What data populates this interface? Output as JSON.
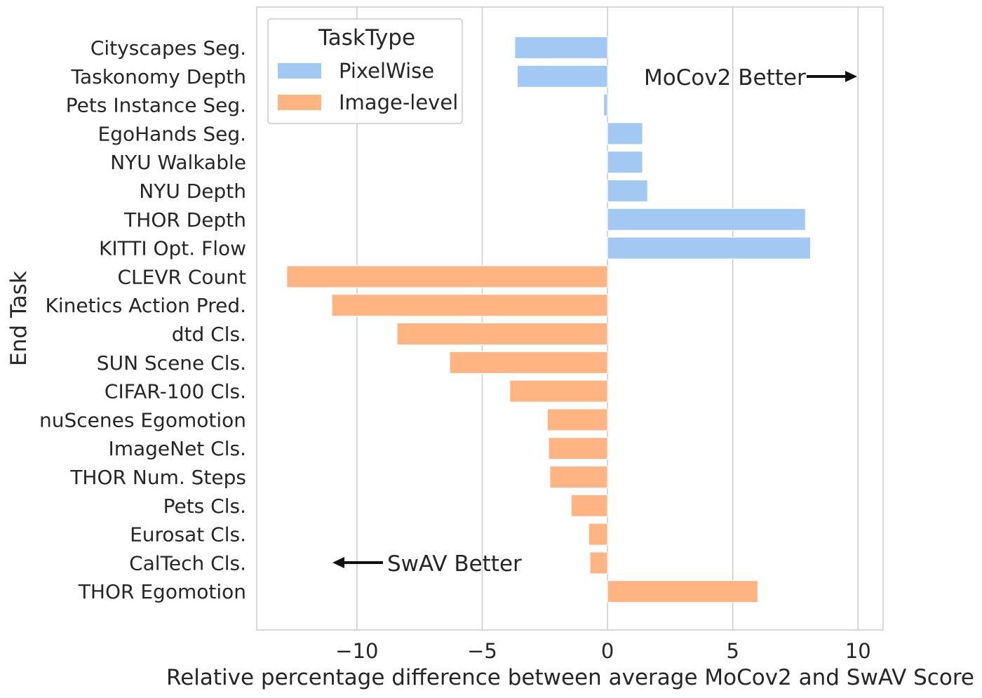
{
  "chart_data": {
    "type": "bar",
    "orientation": "horizontal",
    "xlabel": "Relative percentage difference between average MoCov2 and SwAV Score",
    "ylabel": "End Task",
    "xlim": [
      -14,
      11
    ],
    "xticks": [
      {
        "value": -10,
        "label": "−10"
      },
      {
        "value": -5,
        "label": "−5"
      },
      {
        "value": 0,
        "label": "0"
      },
      {
        "value": 5,
        "label": "5"
      },
      {
        "value": 10,
        "label": "10"
      }
    ],
    "grid": "vertical",
    "legend": {
      "title": "TaskType",
      "placement": "top-left",
      "entries": [
        {
          "name": "PixelWise",
          "color": "#a1c9f4"
        },
        {
          "name": "Image-level",
          "color": "#ffb482"
        }
      ]
    },
    "annotations": [
      {
        "text": "MoCov2 Better",
        "direction": "right"
      },
      {
        "text": "SwAV Better",
        "direction": "left"
      }
    ],
    "categories": [
      "Cityscapes Seg.",
      "Taskonomy Depth",
      "Pets Instance Seg.",
      "EgoHands Seg.",
      "NYU Walkable",
      "NYU Depth",
      "THOR Depth",
      "KITTI Opt. Flow",
      "CLEVR Count",
      "Kinetics Action Pred.",
      "dtd Cls.",
      "SUN Scene Cls.",
      "CIFAR-100 Cls.",
      "nuScenes Egomotion",
      "ImageNet Cls.",
      "THOR Num. Steps",
      "Pets Cls.",
      "Eurosat Cls.",
      "CalTech Cls.",
      "THOR Egomotion"
    ],
    "values": [
      -3.7,
      -3.6,
      -0.15,
      1.4,
      1.4,
      1.6,
      7.9,
      8.1,
      -12.8,
      -11.0,
      -8.4,
      -6.3,
      -3.9,
      -2.4,
      -2.35,
      -2.3,
      -1.45,
      -0.75,
      -0.7,
      6.0
    ],
    "task_type": [
      "PixelWise",
      "PixelWise",
      "PixelWise",
      "PixelWise",
      "PixelWise",
      "PixelWise",
      "PixelWise",
      "PixelWise",
      "Image-level",
      "Image-level",
      "Image-level",
      "Image-level",
      "Image-level",
      "Image-level",
      "Image-level",
      "Image-level",
      "Image-level",
      "Image-level",
      "Image-level",
      "Image-level"
    ]
  }
}
